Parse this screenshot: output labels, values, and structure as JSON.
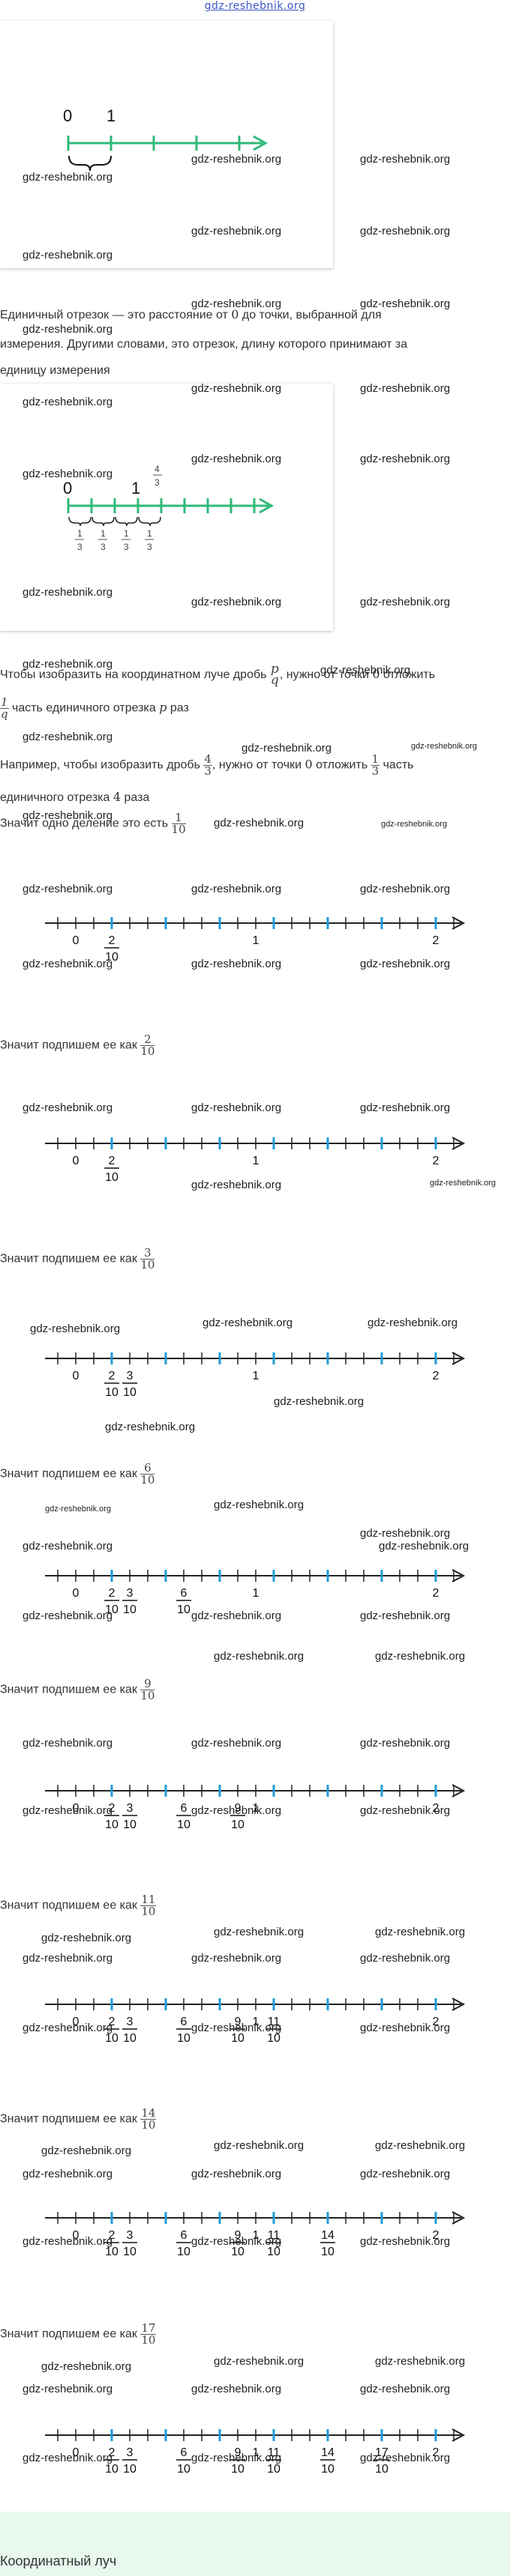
{
  "header": {
    "site": "gdz-reshebnik.org"
  },
  "watermark": "gdz-reshebnik.org",
  "card1": {
    "labels": [
      "0",
      "1"
    ]
  },
  "para1": {
    "line1_a": "Единичный отрезок — это расстояние от ",
    "line1_zero": "0",
    "line1_b": " до точки, выбранной для",
    "line2": "измерения. Другими словами, это отрезок, длину которого принимают за",
    "line3": "единицу измерения"
  },
  "card2": {
    "labels": [
      "0",
      "1"
    ],
    "four_thirds": {
      "num": "4",
      "den": "3"
    },
    "third": {
      "num": "1",
      "den": "3"
    }
  },
  "para2": {
    "a": "Чтобы изобразить на координатном луче дробь ",
    "p": "p",
    "q": "q",
    "b": ", нужно от точки ",
    "zero": "0",
    "c": " отложить",
    "d_num": "1",
    "d_den": "q",
    "e": " часть единичного отрезка ",
    "f": " раз"
  },
  "para3": {
    "a": "Например, чтобы изобразить дробь ",
    "f_num": "4",
    "f_den": "3",
    "b": ", нужно от точки ",
    "zero": "0",
    "c": " отложить ",
    "g_num": "1",
    "g_den": "3",
    "d": " часть",
    "line2_a": "единичного отрезка ",
    "line2_4": "4",
    "line2_b": " раза"
  },
  "para4": {
    "a": "Значит одно деление это есть ",
    "num": "1",
    "den": "10"
  },
  "caption": "Значит подпишем ее как ",
  "steps": [
    {
      "num": "2",
      "den": "10"
    },
    {
      "num": "3",
      "den": "10"
    },
    {
      "num": "6",
      "den": "10"
    },
    {
      "num": "9",
      "den": "10"
    },
    {
      "num": "11",
      "den": "10"
    },
    {
      "num": "14",
      "den": "10"
    },
    {
      "num": "17",
      "den": "10"
    }
  ],
  "axis": {
    "zero": "0",
    "one": "1",
    "two": "2",
    "ten": "10"
  },
  "footer": {
    "title": "Координатный луч"
  },
  "colors": {
    "green": "#2fb87a",
    "blue": "#1f9bd7",
    "footer_bg": "#e8f8ef"
  }
}
